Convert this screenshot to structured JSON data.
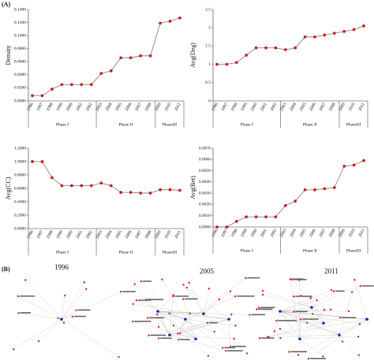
{
  "panels": {
    "a": "(A)",
    "b": "(B)"
  },
  "networks": [
    {
      "title": "1996"
    },
    {
      "title": "2005"
    },
    {
      "title": "2011"
    }
  ],
  "chart_data": [
    {
      "type": "line",
      "y_label": "Density",
      "categories": [
        "1996",
        "1997",
        "1998",
        "1999",
        "2000",
        "2001",
        "2002",
        "2003",
        "2004",
        "2005",
        "2006",
        "2007",
        "2008",
        "2009",
        "2010",
        "2011"
      ],
      "phases": [
        {
          "label": "Phase I",
          "from": "1996",
          "to": "2002"
        },
        {
          "label": "Phase II",
          "from": "2003",
          "to": "2008"
        },
        {
          "label": "PhaseIII",
          "from": "2009",
          "to": "2011"
        }
      ],
      "series": [
        {
          "color": "#e8141c",
          "values": [
            0.008,
            0.008,
            0.018,
            0.025,
            0.025,
            0.025,
            0.025,
            0.042,
            0.046,
            0.066,
            0.066,
            0.069,
            0.069,
            0.119,
            0.122,
            0.127
          ]
        }
      ],
      "ylim": [
        0,
        0.14
      ],
      "yticks": [
        {
          "value": 0,
          "label": "0.0000"
        },
        {
          "value": 0.02,
          "label": "0.0200"
        },
        {
          "value": 0.04,
          "label": "0.0400"
        },
        {
          "value": 0.06,
          "label": "0.0600"
        },
        {
          "value": 0.08,
          "label": "0.0800"
        },
        {
          "value": 0.1,
          "label": "0.1000"
        },
        {
          "value": 0.12,
          "label": "0.1200"
        },
        {
          "value": 0.14,
          "label": "0.1400"
        }
      ]
    },
    {
      "type": "line",
      "y_label": "Avg(Deg)",
      "categories": [
        "1996",
        "1997",
        "1998",
        "1999",
        "2000",
        "2001",
        "2002",
        "2003",
        "2004",
        "2005",
        "2006",
        "2007",
        "2008",
        "2009",
        "2010",
        "2011"
      ],
      "phases": [
        {
          "label": "Phase I",
          "from": "1996",
          "to": "2002"
        },
        {
          "label": "Phase II",
          "from": "2003",
          "to": "2008"
        },
        {
          "label": "PhaseIII",
          "from": "2009",
          "to": "2011"
        }
      ],
      "series": [
        {
          "color": "#e8141c",
          "values": [
            1.0,
            1.0,
            1.05,
            1.25,
            1.45,
            1.45,
            1.45,
            1.4,
            1.45,
            1.75,
            1.75,
            1.8,
            1.85,
            1.9,
            1.95,
            2.05
          ]
        }
      ],
      "ylim": [
        0,
        2.5
      ],
      "yticks": [
        0,
        0.5,
        1,
        1.5,
        2,
        2.5
      ]
    },
    {
      "type": "line",
      "y_label": "Avg(CC)",
      "categories": [
        "1996",
        "1997",
        "1998",
        "1999",
        "2000",
        "2001",
        "2002",
        "2003",
        "2004",
        "2005",
        "2006",
        "2007",
        "2008",
        "2009",
        "2010",
        "2011"
      ],
      "phases": [
        {
          "label": "Phase I",
          "from": "1996",
          "to": "2002"
        },
        {
          "label": "Phase II",
          "from": "2003",
          "to": "2008"
        },
        {
          "label": "PhaseIII",
          "from": "2009",
          "to": "2011"
        }
      ],
      "series": [
        {
          "color": "#e8141c",
          "values": [
            1.0,
            1.0,
            0.76,
            0.64,
            0.64,
            0.64,
            0.64,
            0.68,
            0.64,
            0.54,
            0.54,
            0.53,
            0.53,
            0.58,
            0.58,
            0.57
          ]
        }
      ],
      "ylim": [
        0,
        1.2
      ],
      "yticks": [
        {
          "value": 0,
          "label": "0.0000"
        },
        {
          "value": 0.2,
          "label": "0.2000"
        },
        {
          "value": 0.4,
          "label": "0.4000"
        },
        {
          "value": 0.6,
          "label": "0.6000"
        },
        {
          "value": 0.8,
          "label": "0.8000"
        },
        {
          "value": 1,
          "label": "1.0000"
        },
        {
          "value": 1.2,
          "label": "1.2000"
        }
      ]
    },
    {
      "type": "line",
      "y_label": "Avg(Bet)",
      "categories": [
        "1996",
        "1997",
        "1998",
        "1999",
        "2000",
        "2001",
        "2002",
        "2003",
        "2004",
        "2005",
        "2006",
        "2007",
        "2008",
        "2009",
        "2010",
        "2011"
      ],
      "phases": [
        {
          "label": "Phase I",
          "from": "1996",
          "to": "2002"
        },
        {
          "label": "Phase II",
          "from": "2003",
          "to": "2008"
        },
        {
          "label": "PhaseIII",
          "from": "2009",
          "to": "2011"
        }
      ],
      "series": [
        {
          "color": "#e8141c",
          "values": [
            0.0,
            0.0,
            0.0005,
            0.0009,
            0.0009,
            0.0009,
            0.0009,
            0.0019,
            0.0023,
            0.0033,
            0.0033,
            0.0034,
            0.0035,
            0.0054,
            0.0055,
            0.0059
          ]
        }
      ],
      "ylim": [
        0,
        0.007
      ],
      "yticks": [
        {
          "value": 0,
          "label": "0.0000"
        },
        {
          "value": 0.001,
          "label": "0.0010"
        },
        {
          "value": 0.002,
          "label": "0.0020"
        },
        {
          "value": 0.003,
          "label": "0.0030"
        },
        {
          "value": 0.004,
          "label": "0.0040"
        },
        {
          "value": 0.005,
          "label": "0.0050"
        },
        {
          "value": 0.006,
          "label": "0.0060"
        },
        {
          "value": 0.007,
          "label": "0.0070"
        }
      ]
    }
  ]
}
